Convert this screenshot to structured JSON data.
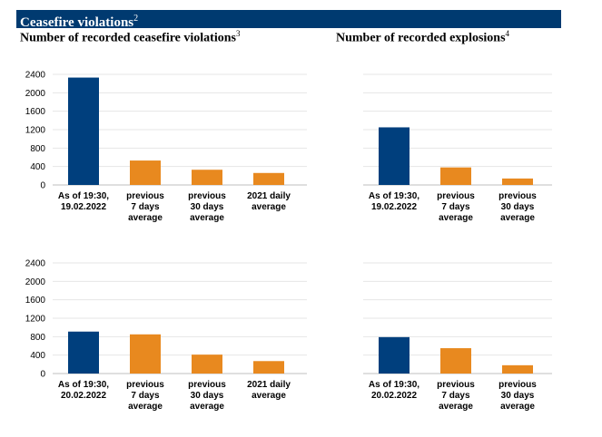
{
  "banner": {
    "title": "Ceasefire violations",
    "sup": "2"
  },
  "headers": {
    "left": {
      "title": "Number of recorded ceasefire violations",
      "sup": "3"
    },
    "right": {
      "title": "Number of recorded explosions",
      "sup": "4"
    }
  },
  "colors": {
    "primary": "#003f7d",
    "secondary": "#e8891f",
    "grid": "#e6e6e6",
    "banner": "#003a70"
  },
  "chart_data": [
    {
      "type": "bar",
      "title": "",
      "categories": [
        "As of 19:30,\n19.02.2022",
        "previous\n7 days\naverage",
        "previous\n30 days\naverage",
        "2021 daily\naverage"
      ],
      "values": [
        2330,
        530,
        330,
        260
      ],
      "ylim": [
        0,
        2400
      ],
      "yticks": [
        0,
        400,
        800,
        1200,
        1600,
        2000,
        2400
      ],
      "grid": true
    },
    {
      "type": "bar",
      "title": "",
      "categories": [
        "As of 19:30,\n19.02.2022",
        "previous\n7 days\naverage",
        "previous\n30 days\naverage"
      ],
      "values": [
        1250,
        380,
        140
      ],
      "ylim": [
        0,
        2400
      ],
      "yticks": [],
      "grid": true
    },
    {
      "type": "bar",
      "title": "",
      "categories": [
        "As of 19:30,\n20.02.2022",
        "previous\n7 days\naverage",
        "previous\n30 days\naverage",
        "2021 daily\naverage"
      ],
      "values": [
        910,
        850,
        410,
        270
      ],
      "ylim": [
        0,
        2400
      ],
      "yticks": [
        0,
        400,
        800,
        1200,
        1600,
        2000,
        2400
      ],
      "grid": true
    },
    {
      "type": "bar",
      "title": "",
      "categories": [
        "As of 19:30,\n20.02.2022",
        "previous\n7 days\naverage",
        "previous\n30 days\naverage"
      ],
      "values": [
        790,
        550,
        180
      ],
      "ylim": [
        0,
        2400
      ],
      "yticks": [],
      "grid": true
    }
  ]
}
